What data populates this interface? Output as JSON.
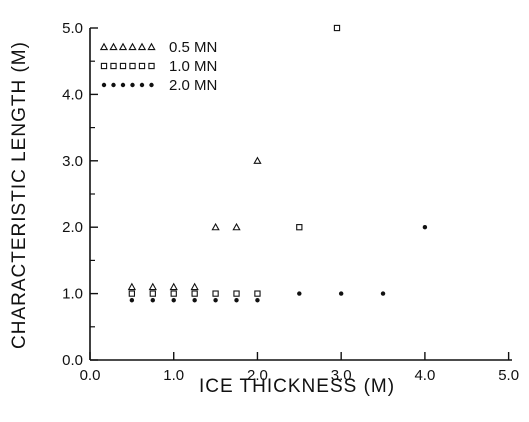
{
  "chart_data": {
    "type": "scatter",
    "title": "",
    "xlabel": "ICE THICKNESS (M)",
    "ylabel": "CHARACTERISTIC LENGTH (M)",
    "xlim": [
      0,
      5
    ],
    "ylim": [
      0,
      5
    ],
    "x_ticks": [
      "0.0",
      "1.0",
      "2.0",
      "3.0",
      "4.0",
      "5.0"
    ],
    "y_ticks": [
      "0.0",
      "1.0",
      "2.0",
      "3.0",
      "4.0",
      "5.0"
    ],
    "grid": false,
    "legend_position": "top-left",
    "series": [
      {
        "name": "0.5 MN",
        "marker": "triangle",
        "points": [
          {
            "x": 0.5,
            "y": 1.1
          },
          {
            "x": 0.75,
            "y": 1.1
          },
          {
            "x": 1.0,
            "y": 1.1
          },
          {
            "x": 1.25,
            "y": 1.1
          },
          {
            "x": 1.5,
            "y": 2.0
          },
          {
            "x": 1.75,
            "y": 2.0
          },
          {
            "x": 2.0,
            "y": 3.0
          }
        ]
      },
      {
        "name": "1.0 MN",
        "marker": "square",
        "points": [
          {
            "x": 0.5,
            "y": 1.0
          },
          {
            "x": 0.75,
            "y": 1.0
          },
          {
            "x": 1.0,
            "y": 1.0
          },
          {
            "x": 1.25,
            "y": 1.0
          },
          {
            "x": 1.5,
            "y": 1.0
          },
          {
            "x": 1.75,
            "y": 1.0
          },
          {
            "x": 2.0,
            "y": 1.0
          },
          {
            "x": 2.5,
            "y": 2.0
          },
          {
            "x": 2.95,
            "y": 5.0
          }
        ]
      },
      {
        "name": "2.0 MN",
        "marker": "dot",
        "points": [
          {
            "x": 0.5,
            "y": 0.9
          },
          {
            "x": 0.75,
            "y": 0.9
          },
          {
            "x": 1.0,
            "y": 0.9
          },
          {
            "x": 1.25,
            "y": 0.9
          },
          {
            "x": 1.5,
            "y": 0.9
          },
          {
            "x": 1.75,
            "y": 0.9
          },
          {
            "x": 2.0,
            "y": 0.9
          },
          {
            "x": 2.5,
            "y": 1.0
          },
          {
            "x": 3.0,
            "y": 1.0
          },
          {
            "x": 3.5,
            "y": 1.0
          },
          {
            "x": 4.0,
            "y": 2.0
          }
        ]
      }
    ]
  }
}
